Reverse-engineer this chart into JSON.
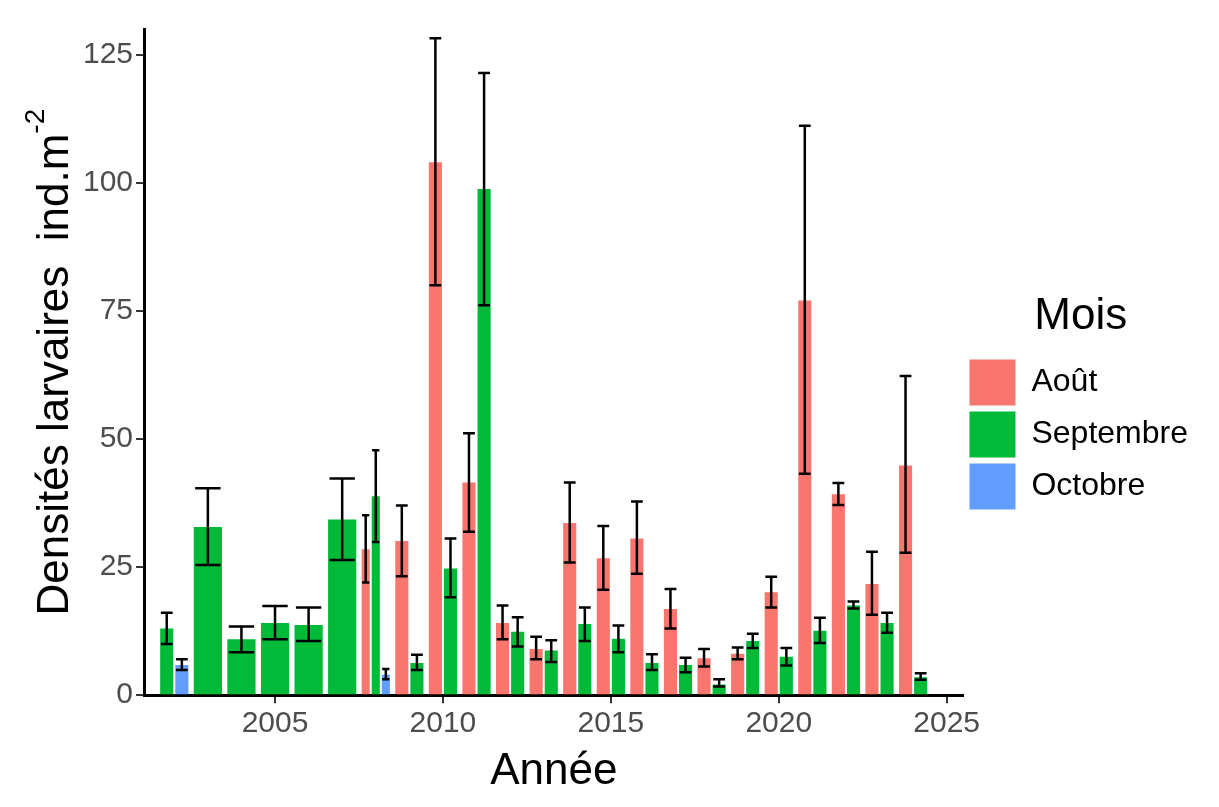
{
  "chart_data": {
    "type": "bar",
    "xlabel": "Année",
    "ylabel": "Densités larvaires  ind.m$^{-2}$",
    "legend_title": "Mois",
    "xlim": [
      2001.1,
      2025.5
    ],
    "xticks": [
      2005,
      2010,
      2015,
      2020,
      2025
    ],
    "ylim": [
      0,
      130
    ],
    "yticks": [
      0,
      25,
      50,
      75,
      100,
      125
    ],
    "grid": false,
    "legend": "right",
    "series": [
      {
        "name": "Août",
        "color": "#f8766d",
        "x": [
          2008,
          2009,
          2010,
          2011,
          2012,
          2013,
          2014,
          2015,
          2016,
          2017,
          2018,
          2019,
          2020,
          2021,
          2022,
          2023,
          2024
        ],
        "values": [
          28.5,
          30.1,
          104,
          41.5,
          14.1,
          9.0,
          33.6,
          26.7,
          30.6,
          16.8,
          7.2,
          8.1,
          20.1,
          77,
          39.2,
          21.7,
          44.8
        ],
        "errors": [
          [
            22.0,
            35.1
          ],
          [
            23.2,
            37.0
          ],
          [
            80,
            128.2
          ],
          [
            31.9,
            51.1
          ],
          [
            10.9,
            17.5
          ],
          [
            7.0,
            11.4
          ],
          [
            25.9,
            41.5
          ],
          [
            20.6,
            33.0
          ],
          [
            23.7,
            37.8
          ],
          [
            13.0,
            20.7
          ],
          [
            5.6,
            9.0
          ],
          [
            7.0,
            9.3
          ],
          [
            17.1,
            23.1
          ],
          [
            43.2,
            111.1
          ],
          [
            37.1,
            41.4
          ],
          [
            15.7,
            28.0
          ],
          [
            27.8,
            62.3
          ]
        ]
      },
      {
        "name": "Septembre",
        "color": "#00ba38",
        "x": [
          2002,
          2003,
          2004,
          2005,
          2006,
          2007,
          2008,
          2009,
          2010,
          2011,
          2012,
          2013,
          2014,
          2015,
          2016,
          2017,
          2018,
          2019,
          2020,
          2021,
          2022,
          2023,
          2024
        ],
        "values": [
          13,
          32.8,
          10.9,
          14.1,
          13.7,
          34.3,
          38.8,
          6.3,
          24.7,
          98.8,
          12.4,
          8.7,
          13.9,
          11.0,
          6.3,
          5.9,
          2.1,
          10.6,
          7.5,
          12.6,
          17.5,
          14.1,
          3.5
        ],
        "errors": [
          [
            10.0,
            16.1
          ],
          [
            25.4,
            40.4
          ],
          [
            8.4,
            13.4
          ],
          [
            10.9,
            17.4
          ],
          [
            10.6,
            17.1
          ],
          [
            26.4,
            42.3
          ],
          [
            29.9,
            47.8
          ],
          [
            4.9,
            7.9
          ],
          [
            19.1,
            30.6
          ],
          [
            76.1,
            121.4
          ],
          [
            9.5,
            15.2
          ],
          [
            6.5,
            10.7
          ],
          [
            10.6,
            17.1
          ],
          [
            8.4,
            13.6
          ],
          [
            4.9,
            8.0
          ],
          [
            4.5,
            7.3
          ],
          [
            1.7,
            3.1
          ],
          [
            9.2,
            12.0
          ],
          [
            5.8,
            9.2
          ],
          [
            10.2,
            15.1
          ],
          [
            16.9,
            18.3
          ],
          [
            12.2,
            16.1
          ],
          [
            3.0,
            4.3
          ]
        ]
      },
      {
        "name": "Octobre",
        "color": "#619cff",
        "x": [
          2002,
          2008
        ],
        "values": [
          5.9,
          4.0
        ],
        "errors": [
          [
            4.9,
            7.0
          ],
          [
            3.1,
            5.1
          ]
        ]
      }
    ]
  }
}
